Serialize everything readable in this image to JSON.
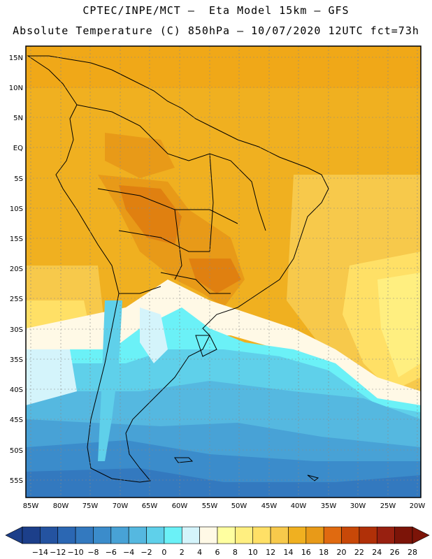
{
  "header": {
    "line1": "CPTEC/INPE/MCT –  Eta Model 15km – GFS",
    "line2": "Absolute Temperature (C) 850hPa – 10/07/2020 12UTC fct=73h"
  },
  "axes": {
    "lat_labels": [
      "15N",
      "10N",
      "5N",
      "EQ",
      "5S",
      "10S",
      "15S",
      "20S",
      "25S",
      "30S",
      "35S",
      "40S",
      "45S",
      "50S",
      "55S"
    ],
    "lon_labels": [
      "85W",
      "80W",
      "75W",
      "70W",
      "65W",
      "60W",
      "55W",
      "50W",
      "45W",
      "40W",
      "35W",
      "30W",
      "25W",
      "20W"
    ]
  },
  "colorbar": {
    "labels": [
      "-14",
      "-12",
      "-10",
      "-8",
      "-6",
      "-4",
      "-2",
      "0",
      "2",
      "4",
      "6",
      "8",
      "10",
      "12",
      "14",
      "16",
      "18",
      "20",
      "22",
      "24",
      "26",
      "28"
    ],
    "colors": [
      "#1c3f8a",
      "#2453a0",
      "#2b67b3",
      "#3379bf",
      "#3b8ccb",
      "#48a2d6",
      "#55b8e0",
      "#5fd0ea",
      "#6bf1f7",
      "#d4f4fb",
      "#fff9e6",
      "#ffffa0",
      "#ffef80",
      "#ffe066",
      "#f7c94b",
      "#f0b020",
      "#e89a18",
      "#e06a10",
      "#c84808",
      "#b03008",
      "#982010",
      "#7c1408"
    ]
  },
  "colors": {
    "ocean_warm": "#f0b020",
    "land_hot": "#e89a18",
    "land_hottest": "#e06a10",
    "coast_line": "#000000",
    "grid": "#888888"
  }
}
